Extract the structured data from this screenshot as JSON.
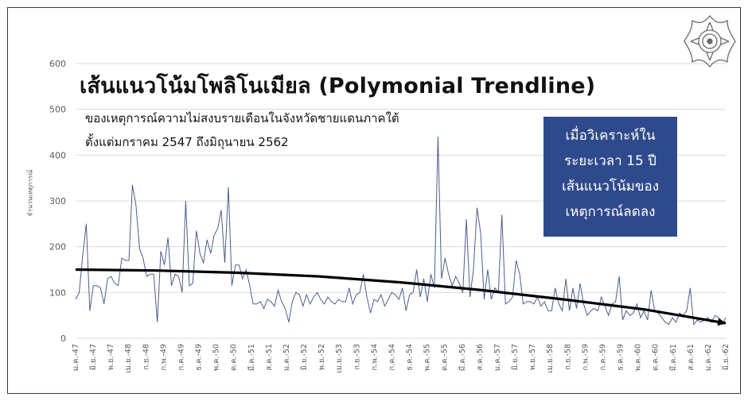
{
  "title": "เส้นแนวโน้มโพลิโนเมียล (Polymonial Trendline)",
  "subtitle_line1": "ของเหตุการณ์ความไม่สงบรายเดือนในจังหวัดชายแดนภาคใต้",
  "subtitle_line2": "ตั้งแต่มกราคม 2547 ถึงมิถุนายน 2562",
  "callout": [
    "เมื่อวิเคราะห์ใน",
    "ระยะเวลา 15 ปี",
    "เส้นแนวโน้มของ",
    "เหตุการณ์ลดลง"
  ],
  "emblem": "ornamental-seal-icon",
  "colors": {
    "series": "#4a5f8a",
    "trend": "#000000",
    "grid": "#d9d9d9",
    "axis_text": "#595959",
    "callout_bg": "#2f4a8c",
    "frame": "#2f3b52"
  },
  "chart_data": {
    "type": "line",
    "ylabel": "จำนวนเหตุการณ์",
    "ylim": [
      0,
      600
    ],
    "yticks": [
      0,
      100,
      200,
      300,
      400,
      500,
      600
    ],
    "grid": true,
    "x_tick_labels": [
      "ม.ค.-47",
      "มิ.ย.-47",
      "พ.ย.-47",
      "เม.ย.-48",
      "ก.ย.-48",
      "ก.พ.-49",
      "ก.ค.-49",
      "ธ.ค.-49",
      "พ.ค.-50",
      "ต.ค.-50",
      "มี.ค.-51",
      "ส.ค.-51",
      "ม.ค.-52",
      "มิ.ย.-52",
      "พ.ย.-52",
      "เม.ย.-53",
      "ก.ย.-53",
      "ก.พ.-54",
      "ก.ค.-54",
      "ธ.ค.-54",
      "พ.ค.-55",
      "ต.ค.-55",
      "มี.ค.-56",
      "ส.ค.-56",
      "ม.ค.-57",
      "มิ.ย.-57",
      "พ.ย.-57",
      "เม.ย.-58",
      "ก.ย.-58",
      "ก.พ.-59",
      "ก.ค.-59",
      "ธ.ค.-59",
      "พ.ค.-60",
      "ต.ค.-60",
      "มี.ค.-61",
      "ส.ค.-61",
      "ม.ค.-62",
      "มิ.ย.-62"
    ],
    "series": [
      {
        "values": [
          85,
          100,
          180,
          250,
          60,
          115,
          115,
          110,
          75,
          130,
          135,
          120,
          115,
          175,
          170,
          170,
          335,
          290,
          195,
          175,
          135,
          140,
          140,
          35,
          190,
          160,
          220,
          115,
          140,
          135,
          100,
          300,
          115,
          120,
          235,
          185,
          165,
          215,
          185,
          225,
          240,
          280,
          165,
          330,
          115,
          160,
          160,
          130,
          150,
          115,
          75,
          75,
          80,
          65,
          85,
          80,
          70,
          105,
          80,
          65,
          35,
          80,
          100,
          95,
          70,
          95,
          75,
          90,
          100,
          85,
          75,
          90,
          80,
          75,
          85,
          80,
          80,
          110,
          75,
          95,
          100,
          140,
          90,
          55,
          85,
          80,
          95,
          70,
          85,
          100,
          95,
          85,
          110,
          60,
          95,
          100,
          150,
          90,
          130,
          80,
          140,
          110,
          440,
          130,
          175,
          140,
          115,
          135,
          120,
          100,
          260,
          90,
          150,
          285,
          230,
          85,
          150,
          85,
          110,
          100,
          270,
          75,
          80,
          90,
          170,
          140,
          75,
          80,
          80,
          75,
          90,
          70,
          80,
          60,
          60,
          110,
          75,
          60,
          130,
          60,
          110,
          65,
          120,
          75,
          50,
          60,
          65,
          60,
          90,
          70,
          50,
          75,
          80,
          135,
          40,
          60,
          50,
          55,
          75,
          45,
          60,
          40,
          105,
          60,
          55,
          45,
          35,
          30,
          45,
          35,
          55,
          50,
          60,
          110,
          30,
          40,
          35,
          40,
          45,
          35,
          50,
          45,
          30,
          45
        ]
      },
      {
        "values": [
          150,
          148,
          143,
          135,
          122,
          105,
          85,
          63,
          33
        ]
      }
    ]
  }
}
